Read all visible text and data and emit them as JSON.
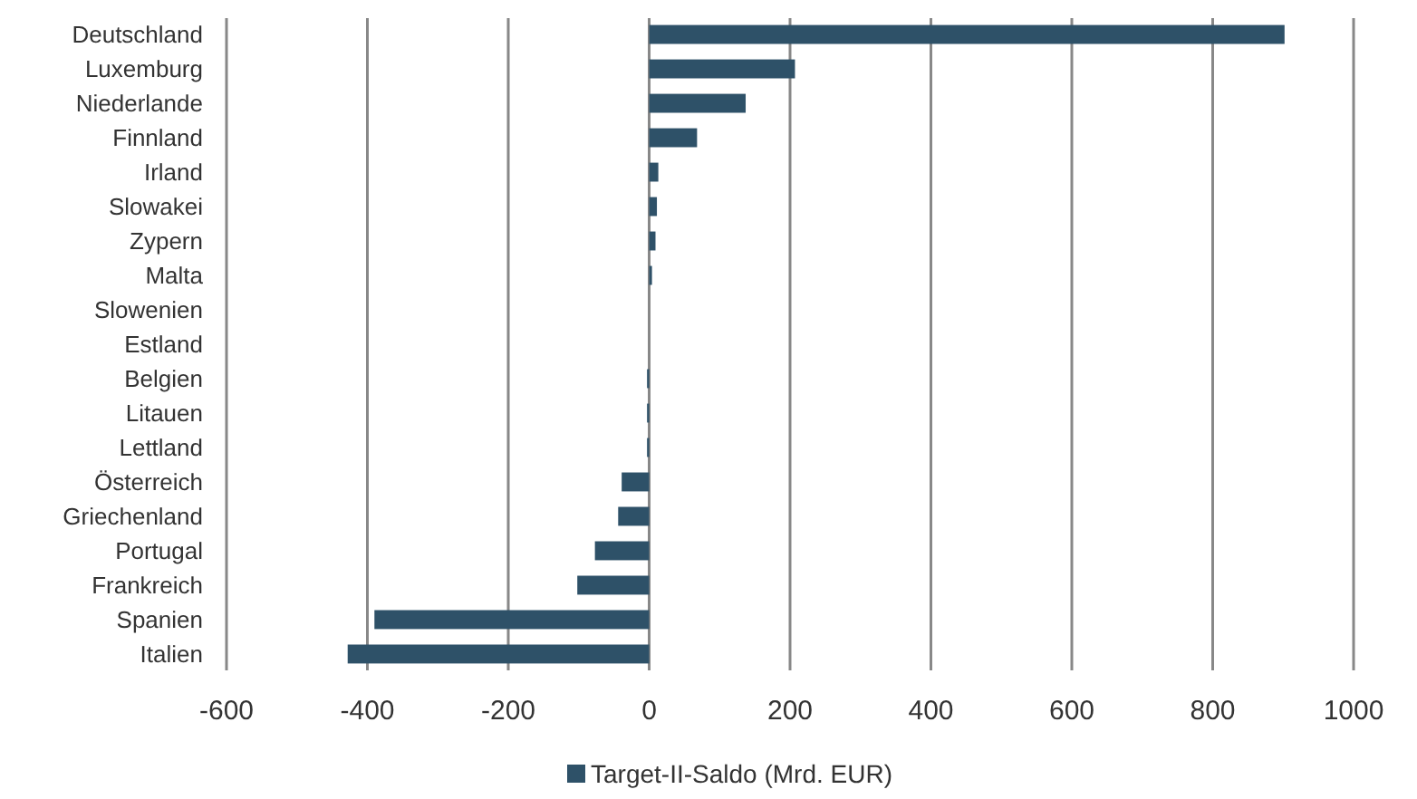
{
  "chart_data": {
    "type": "bar",
    "orientation": "horizontal",
    "categories": [
      "Deutschland",
      "Luxemburg",
      "Niederlande",
      "Finnland",
      "Irland",
      "Slowakei",
      "Zypern",
      "Malta",
      "Slowenien",
      "Estland",
      "Belgien",
      "Litauen",
      "Lettland",
      "Österreich",
      "Griechenland",
      "Portugal",
      "Frankreich",
      "Spanien",
      "Italien"
    ],
    "series": [
      {
        "name": "Target-II-Saldo (Mrd. EUR)",
        "color": "#2e5168",
        "values": [
          902,
          207,
          137,
          68,
          13,
          11,
          9,
          4,
          0,
          0,
          -3,
          -3,
          -3,
          -39,
          -44,
          -77,
          -102,
          -390,
          -428
        ]
      }
    ],
    "xlim": [
      -600,
      1000
    ],
    "xticks": [
      -600,
      -400,
      -200,
      0,
      200,
      400,
      600,
      800,
      1000
    ],
    "grid": "x",
    "legend": "bottom"
  }
}
